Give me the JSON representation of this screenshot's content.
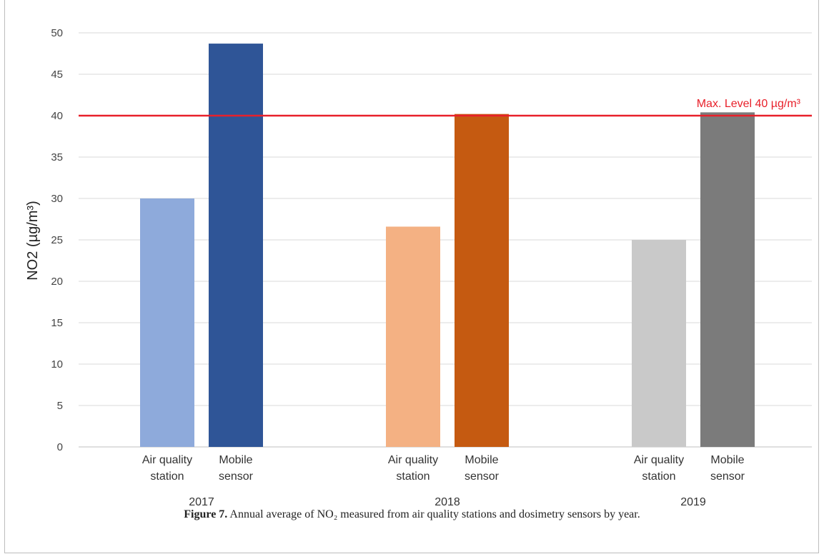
{
  "chart_data": {
    "type": "bar",
    "ylabel": "NO2 (µg/m³)",
    "ylim": [
      0,
      50
    ],
    "yticks": [
      0,
      5,
      10,
      15,
      20,
      25,
      30,
      35,
      40,
      45,
      50
    ],
    "grid": true,
    "groups": [
      {
        "label": "2017",
        "bars": [
          {
            "category": "Air quality station",
            "category_lines": [
              "Air quality",
              "station"
            ],
            "value": 30.0,
            "color": "#8eaadb"
          },
          {
            "category": "Mobile sensor",
            "category_lines": [
              "Mobile",
              "sensor"
            ],
            "value": 48.7,
            "color": "#2f5597"
          }
        ]
      },
      {
        "label": "2018",
        "bars": [
          {
            "category": "Air quality station",
            "category_lines": [
              "Air quality",
              "station"
            ],
            "value": 26.6,
            "color": "#f4b183"
          },
          {
            "category": "Mobile sensor",
            "category_lines": [
              "Mobile",
              "sensor"
            ],
            "value": 40.2,
            "color": "#c55a11"
          }
        ]
      },
      {
        "label": "2019",
        "bars": [
          {
            "category": "Air quality station",
            "category_lines": [
              "Air quality",
              "station"
            ],
            "value": 25.0,
            "color": "#c9c9c9"
          },
          {
            "category": "Mobile sensor",
            "category_lines": [
              "Mobile",
              "sensor"
            ],
            "value": 40.4,
            "color": "#7b7b7b"
          }
        ]
      }
    ],
    "reference_line": {
      "value": 40,
      "label": "Max. Level 40 µg/m³",
      "color": "#e8202a"
    }
  },
  "caption": {
    "label": "Figure 7.",
    "text": " Annual average of NO₂ measured from air quality stations and dosimetry sensors by year."
  }
}
